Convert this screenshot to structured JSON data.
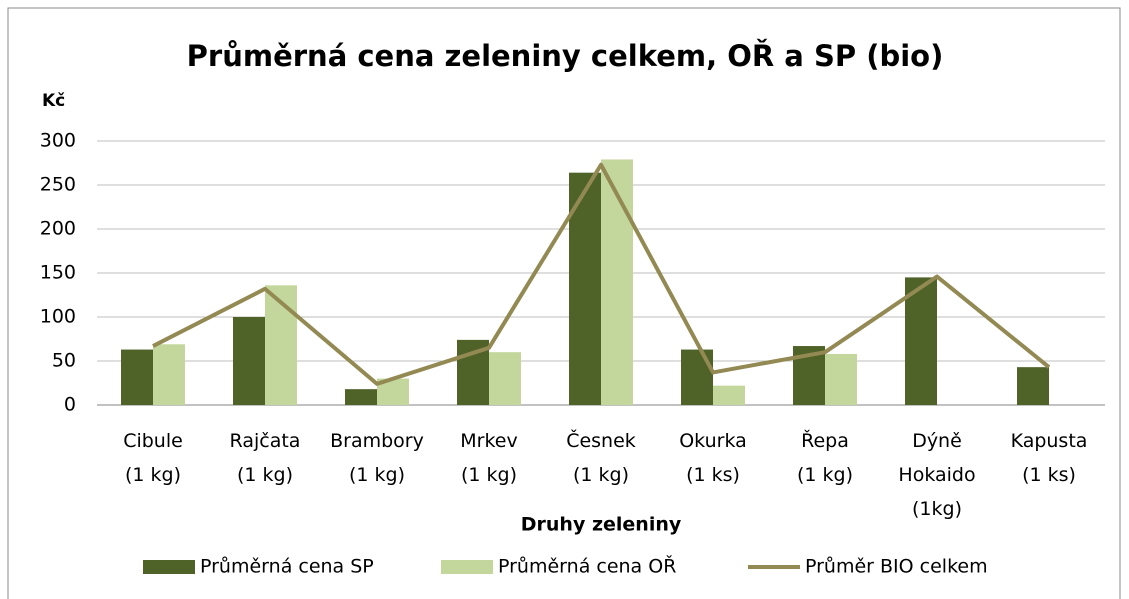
{
  "chart_data": {
    "type": "bar",
    "title": "Průměrná cena zeleniny celkem, OŘ a SP (bio)",
    "y_label": "Kč",
    "x_label": "Druhy zeleniny",
    "categories": [
      "Cibule\n(1 kg)",
      "Rajčata\n(1 kg)",
      "Brambory\n(1 kg)",
      "Mrkev\n(1 kg)",
      "Česnek\n(1 kg)",
      "Okurka\n(1 ks)",
      "Řepa\n(1 kg)",
      "Dýně\nHokaido\n(1kg)",
      "Kapusta\n(1 ks)"
    ],
    "series": [
      {
        "name": "Průměrná cena SP",
        "color": "#4f6228",
        "type": "bar",
        "values": [
          63,
          100,
          18,
          74,
          264,
          63,
          67,
          145,
          43
        ]
      },
      {
        "name": "Průměrná cena OŘ",
        "color": "#c3d69b",
        "type": "bar",
        "values": [
          69,
          136,
          30,
          60,
          279,
          22,
          58,
          null,
          null
        ]
      },
      {
        "name": "Průměr BIO celkem",
        "color": "#938953",
        "type": "line",
        "values": [
          67,
          132,
          24,
          65,
          273,
          37,
          60,
          146,
          43
        ]
      }
    ],
    "ylim": [
      0,
      300
    ],
    "yticks": [
      0,
      50,
      100,
      150,
      200,
      250,
      300
    ],
    "grid": true,
    "legend": "bottom"
  }
}
